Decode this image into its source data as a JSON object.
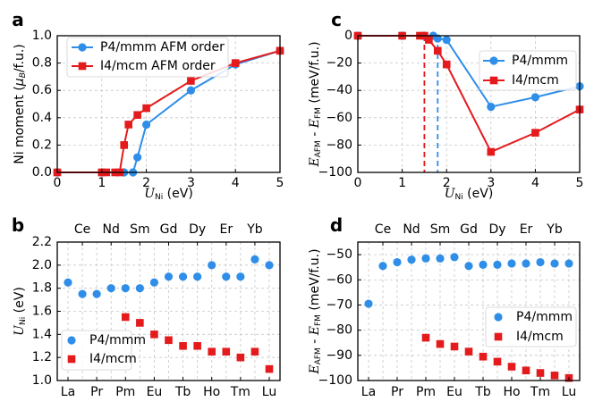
{
  "colors": {
    "blue": "#2e8ee8",
    "red": "#e41a1c",
    "grid": "#c7c7c7",
    "axis": "#000000"
  },
  "chart_data": [
    {
      "panel": "a",
      "type": "line",
      "xlabel": "U_Ni (eV)",
      "ylabel": "Ni moment (μB/f.u.)",
      "xlim": [
        0,
        5
      ],
      "ylim": [
        0,
        1.0
      ],
      "xticks": [
        0,
        1,
        2,
        3,
        4,
        5
      ],
      "yticks": [
        0.0,
        0.2,
        0.4,
        0.6,
        0.8,
        1.0
      ],
      "grid": true,
      "legend": "top-left",
      "series": [
        {
          "name": "P4/mmm AFM order",
          "marker": "circle",
          "color": "blue",
          "x": [
            0,
            1.0,
            1.5,
            1.7,
            1.8,
            2.0,
            3.0,
            4.0,
            5.0
          ],
          "y": [
            0,
            0,
            0,
            0,
            0.11,
            0.35,
            0.6,
            0.79,
            0.89
          ]
        },
        {
          "name": "I4/mcm AFM order",
          "marker": "square",
          "color": "red",
          "x": [
            0,
            1.0,
            1.1,
            1.3,
            1.4,
            1.5,
            1.6,
            1.8,
            2.0,
            3.0,
            4.0,
            5.0
          ],
          "y": [
            0,
            0,
            0,
            0,
            0,
            0.2,
            0.35,
            0.42,
            0.47,
            0.67,
            0.8,
            0.89
          ]
        }
      ]
    },
    {
      "panel": "c",
      "type": "line",
      "xlabel": "U_Ni (eV)",
      "ylabel": "E_AFM - E_FM (meV/f.u.)",
      "xlim": [
        0,
        5
      ],
      "ylim": [
        -100,
        0
      ],
      "xticks": [
        0,
        1,
        2,
        3,
        4,
        5
      ],
      "yticks": [
        0,
        -20,
        -40,
        -60,
        -80,
        -100
      ],
      "grid": true,
      "legend": "top-right",
      "annotations": [
        {
          "type": "vertical-dashed",
          "x": 1.5,
          "color": "red"
        },
        {
          "type": "vertical-dashed",
          "x": 1.8,
          "color": "blue"
        }
      ],
      "series": [
        {
          "name": "P4/mmm",
          "marker": "circle",
          "color": "blue",
          "x": [
            0,
            1.0,
            1.5,
            1.7,
            1.8,
            2.0,
            3.0,
            4.0,
            5.0
          ],
          "y": [
            0,
            0,
            0,
            0,
            -2,
            -3,
            -52,
            -45,
            -37
          ]
        },
        {
          "name": "I4/mcm",
          "marker": "square",
          "color": "red",
          "x": [
            0,
            1.0,
            1.4,
            1.5,
            1.6,
            1.8,
            2.0,
            3.0,
            4.0,
            5.0
          ],
          "y": [
            0,
            0,
            0,
            0,
            -3,
            -11,
            -21,
            -85,
            -71,
            -54
          ]
        }
      ]
    },
    {
      "panel": "b",
      "type": "scatter",
      "xlabel": "",
      "ylabel": "U_Ni (eV)",
      "ylim": [
        1.0,
        2.2
      ],
      "yticks": [
        1.0,
        1.2,
        1.4,
        1.6,
        1.8,
        2.0,
        2.2
      ],
      "categories": [
        "La",
        "Ce",
        "Pr",
        "Nd",
        "Pm",
        "Sm",
        "Eu",
        "Gd",
        "Tb",
        "Dy",
        "Ho",
        "Er",
        "Tm",
        "Yb",
        "Lu"
      ],
      "bottom_ticks": [
        "La",
        "Pr",
        "Pm",
        "Eu",
        "Tb",
        "Ho",
        "Tm",
        "Lu"
      ],
      "top_ticks": [
        "Ce",
        "Nd",
        "Sm",
        "Gd",
        "Dy",
        "Er",
        "Yb"
      ],
      "grid": true,
      "legend": "bottom-left",
      "series": [
        {
          "name": "P4/mmm",
          "marker": "circle",
          "color": "blue",
          "values": [
            1.85,
            1.75,
            1.75,
            1.8,
            1.8,
            1.8,
            1.85,
            1.9,
            1.9,
            1.9,
            2.0,
            1.9,
            1.9,
            2.05,
            2.0
          ]
        },
        {
          "name": "I4/mcm",
          "marker": "square",
          "color": "red",
          "values": [
            null,
            null,
            null,
            null,
            1.55,
            1.5,
            1.4,
            1.35,
            1.3,
            1.3,
            1.25,
            1.25,
            1.2,
            1.25,
            1.1
          ]
        }
      ]
    },
    {
      "panel": "d",
      "type": "scatter",
      "xlabel": "",
      "ylabel": "E_AFM - E_FM (meV/f.u.)",
      "ylim": [
        -100,
        -45
      ],
      "yticks": [
        -50,
        -60,
        -70,
        -80,
        -90,
        -100
      ],
      "categories": [
        "La",
        "Ce",
        "Pr",
        "Nd",
        "Pm",
        "Sm",
        "Eu",
        "Gd",
        "Tb",
        "Dy",
        "Ho",
        "Er",
        "Tm",
        "Yb",
        "Lu"
      ],
      "bottom_ticks": [
        "La",
        "Pr",
        "Pm",
        "Eu",
        "Tb",
        "Ho",
        "Tm",
        "Lu"
      ],
      "top_ticks": [
        "Ce",
        "Nd",
        "Sm",
        "Gd",
        "Dy",
        "Er",
        "Yb"
      ],
      "grid": true,
      "legend": "center-right",
      "series": [
        {
          "name": "P4/mmm",
          "marker": "circle",
          "color": "blue",
          "values": [
            -69.5,
            -54.5,
            -53,
            -52,
            -51.5,
            -51.5,
            -51,
            -54.5,
            -54,
            -54,
            -53.5,
            -53.5,
            -53,
            -53.5,
            -53.5
          ]
        },
        {
          "name": "I4/mcm",
          "marker": "square",
          "color": "red",
          "values": [
            null,
            null,
            null,
            null,
            -83,
            -85.5,
            -86.5,
            -88.5,
            -90.5,
            -92.5,
            -94.5,
            -96,
            -97,
            -98,
            -99
          ]
        }
      ]
    }
  ]
}
